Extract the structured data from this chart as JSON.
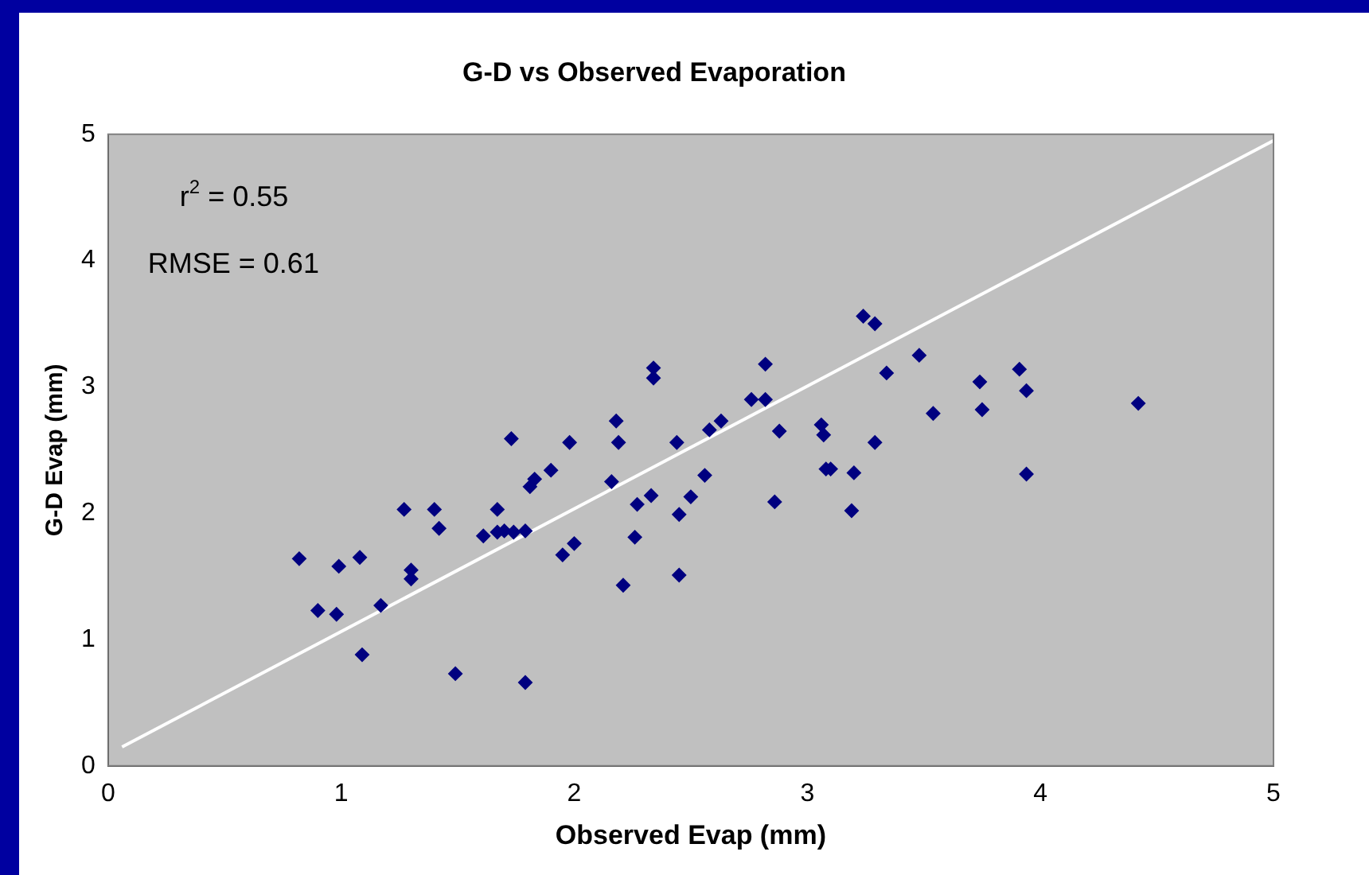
{
  "chart_data": {
    "type": "scatter",
    "title": "G-D vs Observed Evaporation",
    "xlabel": "Observed Evap (mm)",
    "ylabel": "G-D Evap (mm)",
    "xlim": [
      0,
      5
    ],
    "ylim": [
      0,
      5
    ],
    "xticks": [
      0,
      1,
      2,
      3,
      4,
      5
    ],
    "yticks": [
      0,
      1,
      2,
      3,
      4,
      5
    ],
    "grid": false,
    "legend": false,
    "marker": "diamond",
    "annotations": [
      "r$^{2}$ = 0.55",
      "RMSE = 0.61"
    ],
    "series": [
      {
        "color": "#000080",
        "x": [
          0.82,
          0.9,
          0.98,
          0.99,
          1.08,
          1.09,
          1.17,
          1.27,
          1.3,
          1.3,
          1.4,
          1.42,
          1.49,
          1.61,
          1.67,
          1.67,
          1.7,
          1.73,
          1.74,
          1.79,
          1.79,
          1.81,
          1.83,
          1.9,
          1.95,
          1.98,
          2.0,
          2.16,
          2.18,
          2.19,
          2.21,
          2.26,
          2.27,
          2.33,
          2.34,
          2.34,
          2.44,
          2.45,
          2.45,
          2.5,
          2.56,
          2.58,
          2.63,
          2.76,
          2.82,
          2.82,
          2.86,
          2.88,
          3.06,
          3.07,
          3.08,
          3.1,
          3.19,
          3.2,
          3.24,
          3.29,
          3.29,
          3.34,
          3.48,
          3.54,
          3.75,
          3.74,
          3.91,
          3.94,
          3.94,
          4.42
        ],
        "values": [
          1.64,
          1.23,
          1.2,
          1.58,
          1.65,
          0.88,
          1.27,
          2.03,
          1.48,
          1.55,
          2.03,
          1.88,
          0.73,
          1.82,
          2.03,
          1.85,
          1.86,
          2.59,
          1.85,
          1.86,
          0.66,
          2.21,
          2.27,
          2.34,
          1.67,
          2.56,
          1.76,
          2.25,
          2.73,
          2.56,
          1.43,
          1.81,
          2.07,
          2.14,
          3.15,
          3.07,
          2.56,
          1.99,
          1.51,
          2.13,
          2.3,
          2.66,
          2.73,
          2.9,
          2.9,
          3.18,
          2.09,
          2.65,
          2.7,
          2.62,
          2.35,
          2.35,
          2.02,
          2.32,
          3.56,
          3.5,
          2.56,
          3.11,
          3.25,
          2.79,
          2.82,
          3.04,
          3.14,
          2.97,
          2.31,
          2.87
        ]
      },
      {
        "type": "line",
        "color": "#ffffff",
        "x": [
          0.06,
          5.0
        ],
        "values": [
          0.15,
          4.95
        ],
        "marker": "none"
      }
    ]
  }
}
